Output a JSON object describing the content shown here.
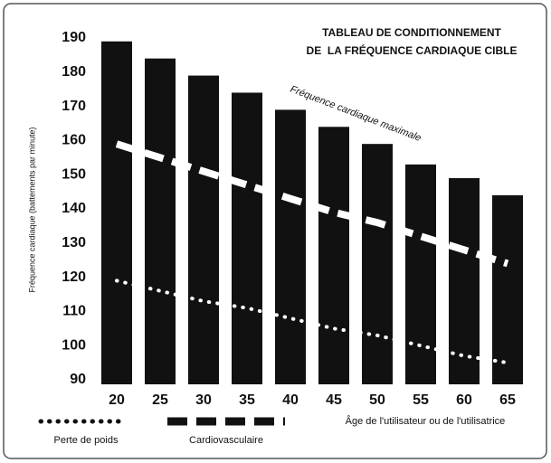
{
  "chart_data": {
    "type": "bar",
    "title": "TABLEAU DE CONDITIONNEMENT",
    "subtitle": "DE  LA FRÉQUENCE CARDIAQUE CIBLE",
    "y_label": "Fréquence cardiaque (battements par minute)",
    "x_label": "Âge de l'utilisateur ou de l'utilisatrice",
    "annotation": "Fréquence cardiaque maximale",
    "categories": [
      "20",
      "25",
      "30",
      "35",
      "40",
      "45",
      "50",
      "55",
      "60",
      "65"
    ],
    "values": [
      189,
      184,
      179,
      174,
      169,
      164,
      159,
      153,
      149,
      144
    ],
    "color": "#111111",
    "lines": [
      {
        "name": "Perte de poids",
        "style": "dotted",
        "color": "#ffffff",
        "values": [
          119,
          116,
          113,
          111,
          108,
          105,
          103,
          100,
          97,
          95
        ]
      },
      {
        "name": "Cardiovasculaire",
        "style": "dashed",
        "color": "#ffffff",
        "values": [
          159,
          155,
          151,
          147,
          143,
          139,
          136,
          132,
          128,
          124
        ]
      }
    ],
    "ylim": [
      90,
      190
    ],
    "yticks": [
      90,
      100,
      110,
      120,
      130,
      140,
      150,
      160,
      170,
      180,
      190
    ]
  }
}
